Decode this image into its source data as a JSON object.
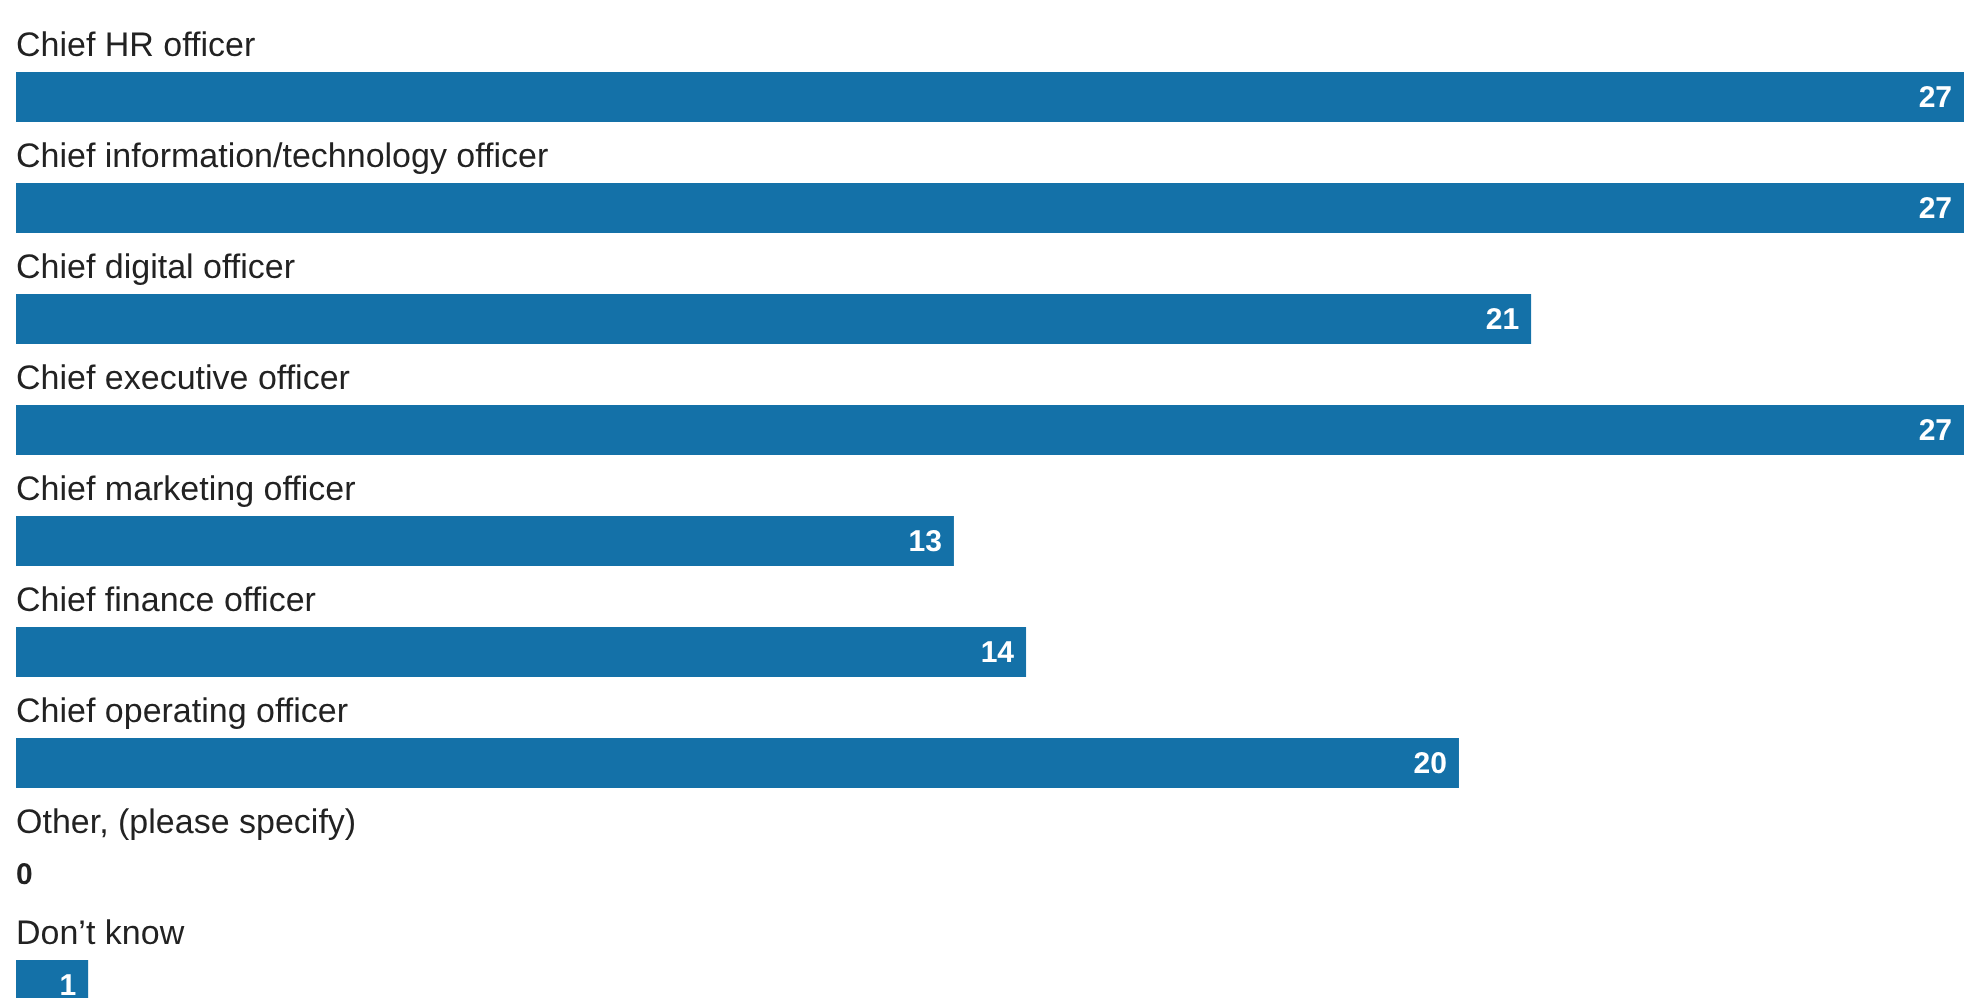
{
  "chart_data": {
    "type": "bar",
    "orientation": "horizontal",
    "data_labels": true,
    "color": "#1471a8",
    "categories": [
      "Chief HR officer",
      "Chief information/technology officer",
      "Chief digital officer",
      "Chief executive officer",
      "Chief marketing officer",
      "Chief finance officer",
      "Chief operating officer",
      "Other, (please specify)",
      "Don’t know"
    ],
    "values": [
      27,
      27,
      21,
      27,
      13,
      14,
      20,
      0,
      1
    ]
  }
}
